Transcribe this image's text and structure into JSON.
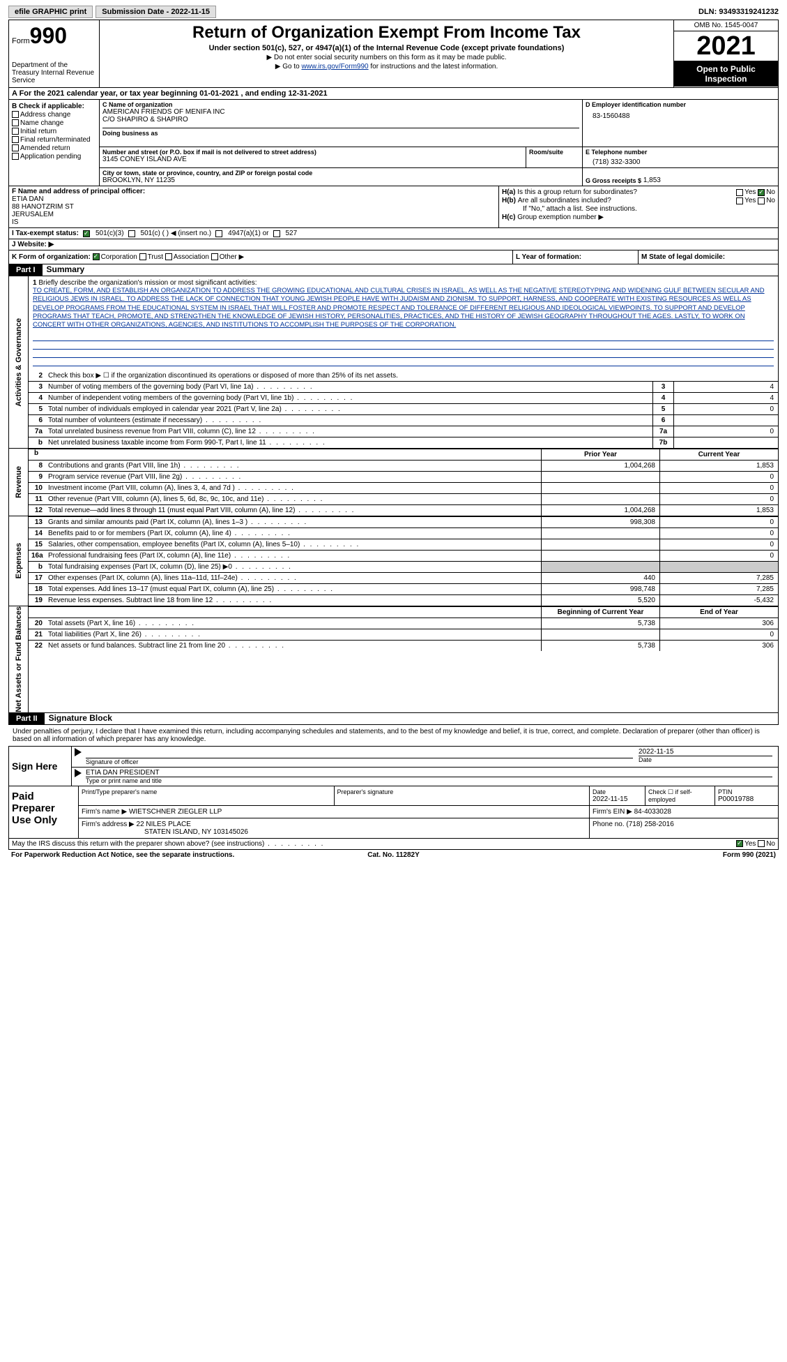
{
  "topbar": {
    "efile": "efile GRAPHIC print",
    "submission": "Submission Date - 2022-11-15",
    "dln": "DLN: 93493319241232"
  },
  "header": {
    "form_label": "Form",
    "form_num": "990",
    "dept": "Department of the Treasury Internal Revenue Service",
    "title": "Return of Organization Exempt From Income Tax",
    "subtitle": "Under section 501(c), 527, or 4947(a)(1) of the Internal Revenue Code (except private foundations)",
    "note1": "▶ Do not enter social security numbers on this form as it may be made public.",
    "note2_pre": "▶ Go to ",
    "note2_link": "www.irs.gov/Form990",
    "note2_post": " for instructions and the latest information.",
    "omb": "OMB No. 1545-0047",
    "year": "2021",
    "open": "Open to Public Inspection"
  },
  "rowA": "A   For the 2021 calendar year, or tax year beginning 01-01-2021    , and ending 12-31-2021",
  "boxB": {
    "header": "B Check if applicable:",
    "items": [
      "Address change",
      "Name change",
      "Initial return",
      "Final return/terminated",
      "Amended return",
      "Application pending"
    ]
  },
  "boxC": {
    "name_lbl": "C Name of organization",
    "name": "AMERICAN FRIENDS OF MENIFA INC",
    "co": "C/O SHAPIRO & SHAPIRO",
    "dba_lbl": "Doing business as",
    "addr_lbl": "Number and street (or P.O. box if mail is not delivered to street address)",
    "addr": "3145 CONEY ISLAND AVE",
    "room_lbl": "Room/suite",
    "city_lbl": "City or town, state or province, country, and ZIP or foreign postal code",
    "city": "BROOKLYN, NY  11235"
  },
  "boxD": {
    "lbl": "D Employer identification number",
    "val": "83-1560488"
  },
  "boxE": {
    "lbl": "E Telephone number",
    "val": "(718) 332-3300"
  },
  "boxG": {
    "lbl": "G Gross receipts $",
    "val": "1,853"
  },
  "boxF": {
    "lbl": "F  Name and address of principal officer:",
    "name": "ETIA DAN",
    "addr1": "88 HANOTZRIM ST",
    "addr2": "JERUSALEM",
    "addr3": "IS"
  },
  "boxH": {
    "a_lbl": "H(a)",
    "a_q": "Is this a group return for subordinates?",
    "b_lbl": "H(b)",
    "b_q": "Are all subordinates included?",
    "b_note": "If \"No,\" attach a list. See instructions.",
    "c_lbl": "H(c)",
    "c_q": "Group exemption number ▶",
    "yes": "Yes",
    "no": "No"
  },
  "rowI": {
    "lbl": "I    Tax-exempt status:",
    "o1": "501(c)(3)",
    "o2": "501(c) (  ) ◀ (insert no.)",
    "o3": "4947(a)(1) or",
    "o4": "527"
  },
  "rowJ": {
    "lbl": "J   Website: ▶"
  },
  "rowK": {
    "lbl": "K Form of organization:",
    "o1": "Corporation",
    "o2": "Trust",
    "o3": "Association",
    "o4": "Other ▶",
    "l_lbl": "L Year of formation:",
    "m_lbl": "M State of legal domicile:"
  },
  "part1": {
    "hdr": "Part I",
    "title": "Summary"
  },
  "governance": {
    "vlabel": "Activities & Governance",
    "l1_lbl": "1",
    "l1_desc": "Briefly describe the organization's mission or most significant activities:",
    "mission": "TO CREATE, FORM, AND ESTABLISH AN ORGANIZATION TO ADDRESS THE GROWING EDUCATIONAL AND CULTURAL CRISES IN ISRAEL, AS WELL AS THE NEGATIVE STEREOTYPING AND WIDENING GULF BETWEEN SECULAR AND RELIGIOUS JEWS IN ISRAEL. TO ADDRESS THE LACK OF CONNECTION THAT YOUNG JEWISH PEOPLE HAVE WITH JUDAISM AND ZIONISM. TO SUPPORT, HARNESS, AND COOPERATE WITH EXISTING RESOURCES AS WELL AS DEVELOP PROGRAMS FROM THE EDUCATIONAL SYSTEM IN ISRAEL THAT WILL FOSTER AND PROMOTE RESPECT AND TOLERANCE OF DIFFERENT RELIGIOUS AND IDEOLOGICAL VIEWPOINTS. TO SUPPORT AND DEVELOP PROGRAMS THAT TEACH, PROMOTE, AND STRENGTHEN THE KNOWLEDGE OF JEWISH HISTORY, PERSONALITIES, PRACTICES, AND THE HISTORY OF JEWISH GEOGRAPHY THROUGHOUT THE AGES. LASTLY, TO WORK ON CONCERT WITH OTHER ORGANIZATIONS, AGENCIES, AND INSTITUTIONS TO ACCOMPLISH THE PURPOSES OF THE CORPORATION.",
    "l2": "Check this box ▶ ☐ if the organization discontinued its operations or disposed of more than 25% of its net assets.",
    "lines": [
      {
        "n": "3",
        "d": "Number of voting members of the governing body (Part VI, line 1a)",
        "bn": "3",
        "v": "4"
      },
      {
        "n": "4",
        "d": "Number of independent voting members of the governing body (Part VI, line 1b)",
        "bn": "4",
        "v": "4"
      },
      {
        "n": "5",
        "d": "Total number of individuals employed in calendar year 2021 (Part V, line 2a)",
        "bn": "5",
        "v": "0"
      },
      {
        "n": "6",
        "d": "Total number of volunteers (estimate if necessary)",
        "bn": "6",
        "v": ""
      },
      {
        "n": "7a",
        "d": "Total unrelated business revenue from Part VIII, column (C), line 12",
        "bn": "7a",
        "v": "0"
      },
      {
        "n": "b",
        "d": "Net unrelated business taxable income from Form 990-T, Part I, line 11",
        "bn": "7b",
        "v": ""
      }
    ]
  },
  "revenue": {
    "vlabel": "Revenue",
    "hdr_prior": "Prior Year",
    "hdr_curr": "Current Year",
    "lines": [
      {
        "n": "8",
        "d": "Contributions and grants (Part VIII, line 1h)",
        "p": "1,004,268",
        "c": "1,853"
      },
      {
        "n": "9",
        "d": "Program service revenue (Part VIII, line 2g)",
        "p": "",
        "c": "0"
      },
      {
        "n": "10",
        "d": "Investment income (Part VIII, column (A), lines 3, 4, and 7d )",
        "p": "",
        "c": "0"
      },
      {
        "n": "11",
        "d": "Other revenue (Part VIII, column (A), lines 5, 6d, 8c, 9c, 10c, and 11e)",
        "p": "",
        "c": "0"
      },
      {
        "n": "12",
        "d": "Total revenue—add lines 8 through 11 (must equal Part VIII, column (A), line 12)",
        "p": "1,004,268",
        "c": "1,853"
      }
    ]
  },
  "expenses": {
    "vlabel": "Expenses",
    "lines": [
      {
        "n": "13",
        "d": "Grants and similar amounts paid (Part IX, column (A), lines 1–3 )",
        "p": "998,308",
        "c": "0"
      },
      {
        "n": "14",
        "d": "Benefits paid to or for members (Part IX, column (A), line 4)",
        "p": "",
        "c": "0"
      },
      {
        "n": "15",
        "d": "Salaries, other compensation, employee benefits (Part IX, column (A), lines 5–10)",
        "p": "",
        "c": "0"
      },
      {
        "n": "16a",
        "d": "Professional fundraising fees (Part IX, column (A), line 11e)",
        "p": "",
        "c": "0"
      },
      {
        "n": "b",
        "d": "Total fundraising expenses (Part IX, column (D), line 25) ▶0",
        "p": "shaded",
        "c": "shaded"
      },
      {
        "n": "17",
        "d": "Other expenses (Part IX, column (A), lines 11a–11d, 11f–24e)",
        "p": "440",
        "c": "7,285"
      },
      {
        "n": "18",
        "d": "Total expenses. Add lines 13–17 (must equal Part IX, column (A), line 25)",
        "p": "998,748",
        "c": "7,285"
      },
      {
        "n": "19",
        "d": "Revenue less expenses. Subtract line 18 from line 12",
        "p": "5,520",
        "c": "-5,432"
      }
    ]
  },
  "netassets": {
    "vlabel": "Net Assets or Fund Balances",
    "hdr_prior": "Beginning of Current Year",
    "hdr_curr": "End of Year",
    "lines": [
      {
        "n": "20",
        "d": "Total assets (Part X, line 16)",
        "p": "5,738",
        "c": "306"
      },
      {
        "n": "21",
        "d": "Total liabilities (Part X, line 26)",
        "p": "",
        "c": "0"
      },
      {
        "n": "22",
        "d": "Net assets or fund balances. Subtract line 21 from line 20",
        "p": "5,738",
        "c": "306"
      }
    ]
  },
  "part2": {
    "hdr": "Part II",
    "title": "Signature Block"
  },
  "sig": {
    "decl": "Under penalties of perjury, I declare that I have examined this return, including accompanying schedules and statements, and to the best of my knowledge and belief, it is true, correct, and complete. Declaration of preparer (other than officer) is based on all information of which preparer has any knowledge.",
    "sign_here": "Sign Here",
    "sig_officer": "Signature of officer",
    "date": "Date",
    "date_val": "2022-11-15",
    "name_title": "ETIA DAN  PRESIDENT",
    "type_name": "Type or print name and title"
  },
  "paid": {
    "label": "Paid Preparer Use Only",
    "print_lbl": "Print/Type preparer's name",
    "sig_lbl": "Preparer's signature",
    "date_lbl": "Date",
    "date_val": "2022-11-15",
    "check_lbl": "Check ☐ if self-employed",
    "ptin_lbl": "PTIN",
    "ptin": "P00019788",
    "firm_name_lbl": "Firm's name    ▶",
    "firm_name": "WIETSCHNER ZIEGLER LLP",
    "firm_ein_lbl": "Firm's EIN ▶",
    "firm_ein": "84-4033028",
    "firm_addr_lbl": "Firm's address ▶",
    "firm_addr1": "22 NILES PLACE",
    "firm_addr2": "STATEN ISLAND, NY  103145026",
    "phone_lbl": "Phone no.",
    "phone": "(718) 258-2016"
  },
  "footer": {
    "q": "May the IRS discuss this return with the preparer shown above? (see instructions)",
    "yes": "Yes",
    "no": "No",
    "paperwork": "For Paperwork Reduction Act Notice, see the separate instructions.",
    "cat": "Cat. No. 11282Y",
    "form": "Form 990 (2021)"
  }
}
